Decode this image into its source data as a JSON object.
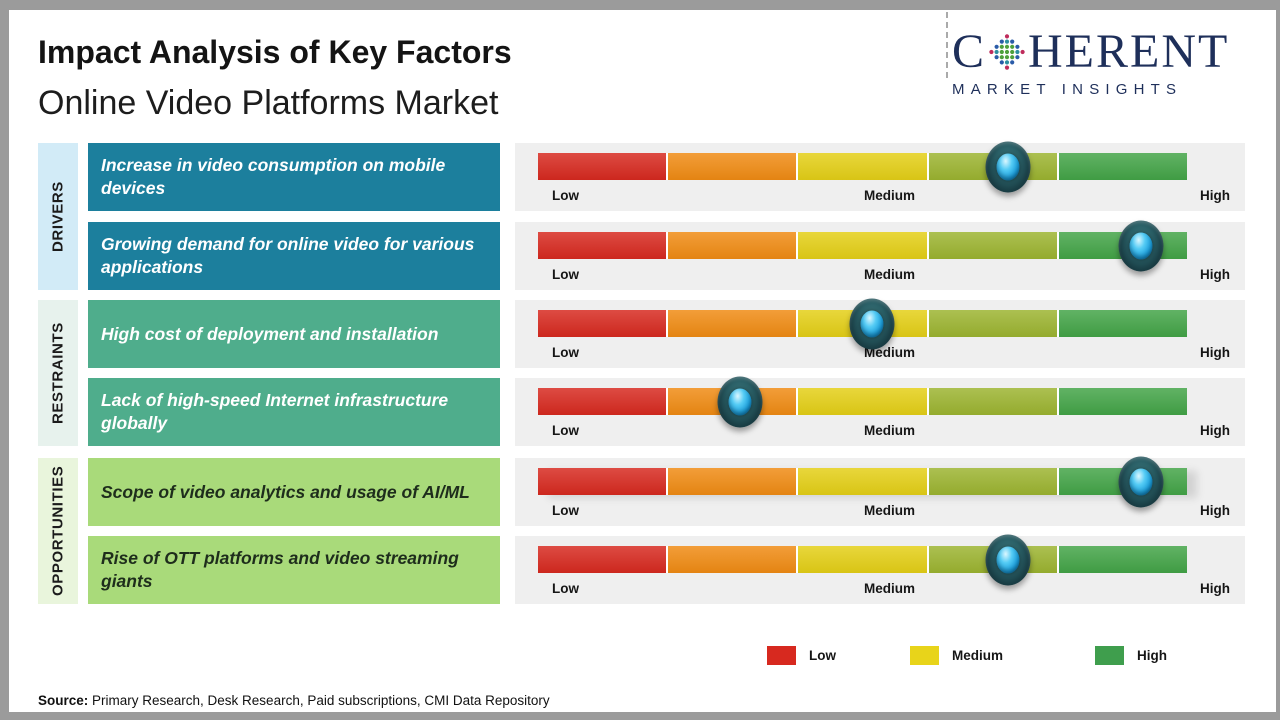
{
  "header": {
    "title": "Impact Analysis of Key Factors",
    "subtitle": "Online Video Platforms Market",
    "logo": {
      "brand_first": "C",
      "brand_rest": "HERENT",
      "tagline": "MARKET INSIGHTS",
      "brand_color": "#1e2f5a"
    }
  },
  "groups": [
    {
      "label": "DRIVERS",
      "strip_color": "#d2ebf7",
      "box_color": "#1c7f9d"
    },
    {
      "label": "RESTRAINTS",
      "strip_color": "#e7f2ed",
      "box_color": "#4fad8c"
    },
    {
      "label": "OPPORTUNITIES",
      "strip_color": "#e9f5dc",
      "box_color": "#a9da7a"
    }
  ],
  "rows": [
    {
      "group": "DRIVERS",
      "factor": "Increase in video consumption on mobile devices",
      "impact_pct": 72.4
    },
    {
      "group": "DRIVERS",
      "factor": "Growing demand for online video for various applications",
      "impact_pct": 92.9
    },
    {
      "group": "RESTRAINTS",
      "factor": "High cost of deployment and installation",
      "impact_pct": 51.5
    },
    {
      "group": "RESTRAINTS",
      "factor": "Lack of high-speed Internet infrastructure globally",
      "impact_pct": 31.1
    },
    {
      "group": "OPPORTUNITIES",
      "factor": "Scope of video analytics and usage of AI/ML",
      "impact_pct": 92.9
    },
    {
      "group": "OPPORTUNITIES",
      "factor": "Rise of OTT platforms and video streaming giants",
      "impact_pct": 72.4
    }
  ],
  "scale": {
    "low": "Low",
    "medium": "Medium",
    "high": "High",
    "segment_colors": [
      "#d7291f",
      "#f08b13",
      "#e4cf16",
      "#9cb430",
      "#43a447"
    ]
  },
  "legend": [
    {
      "label": "Low",
      "color": "#d7291f"
    },
    {
      "label": "Medium",
      "color": "#e8d41a"
    },
    {
      "label": "High",
      "color": "#3f9e4d"
    }
  ],
  "source": {
    "prefix": "Source:",
    "text": " Primary Research, Desk Research, Paid subscriptions, CMI Data Repository"
  }
}
